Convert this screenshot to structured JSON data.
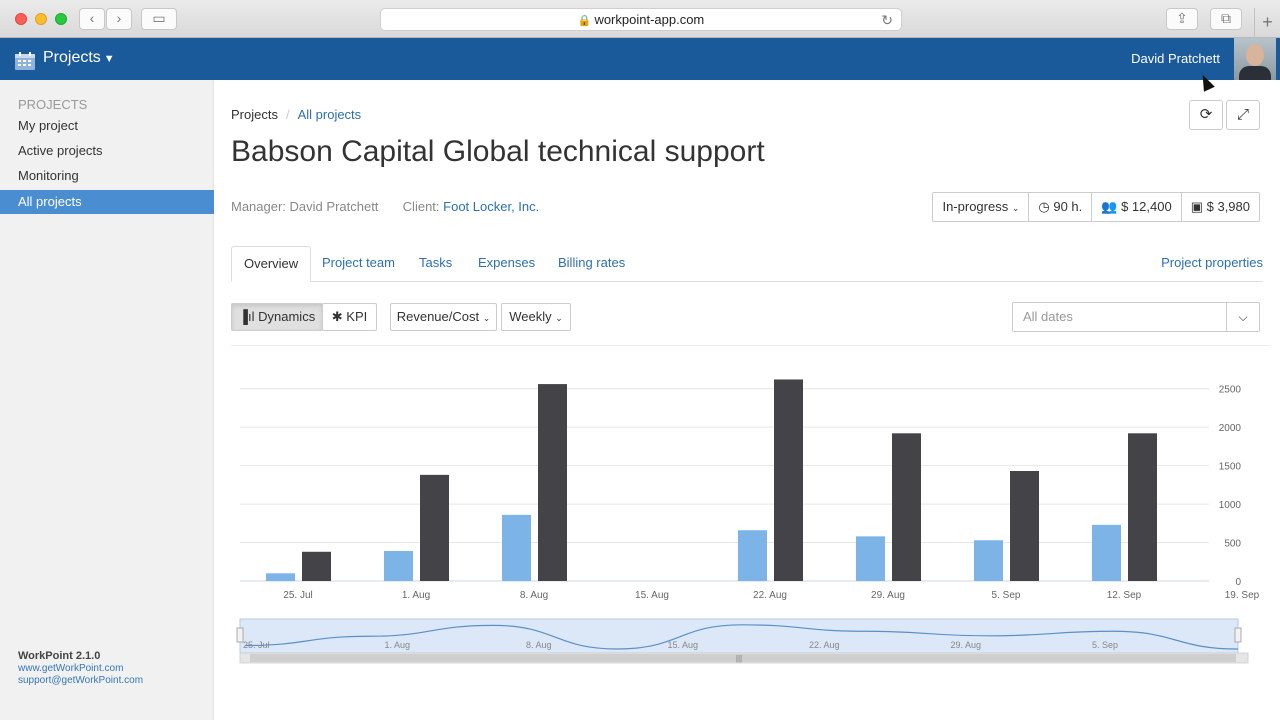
{
  "browser": {
    "url": "workpoint-app.com"
  },
  "header": {
    "app_menu": "Projects",
    "user_name": "David Pratchett"
  },
  "sidebar": {
    "section": "PROJECTS",
    "items": [
      {
        "label": "My project",
        "active": false
      },
      {
        "label": "Active projects",
        "active": false
      },
      {
        "label": "Monitoring",
        "active": false
      },
      {
        "label": "All projects",
        "active": true
      }
    ],
    "version": "WorkPoint 2.1.0",
    "website": "www.getWorkPoint.com",
    "email": "support@getWorkPoint.com"
  },
  "breadcrumb": {
    "root": "Projects",
    "current": "All projects"
  },
  "project": {
    "title": "Babson Capital Global technical support",
    "manager_label": "Manager:",
    "manager": "David Pratchett",
    "client_label": "Client:",
    "client": "Foot Locker, Inc."
  },
  "stats": {
    "status": "In-progress",
    "hours": "90 h.",
    "team_cost": "$ 12,400",
    "expenses": "$ 3,980"
  },
  "tabs": [
    "Overview",
    "Project team",
    "Tasks",
    "Expenses",
    "Billing rates"
  ],
  "tabs_active": "Overview",
  "properties_link": "Project properties",
  "toolbar": {
    "dynamics": "Dynamics",
    "kpi": "KPI",
    "metric": "Revenue/Cost",
    "period": "Weekly",
    "dates_placeholder": "All dates"
  },
  "colors": {
    "header": "#1a5a9b",
    "sidebar_active": "#4a8ed1",
    "light_bar": "#7cb4e8",
    "dark_bar": "#434348"
  },
  "chart_data": {
    "type": "bar",
    "categories": [
      "25. Jul",
      "1. Aug",
      "8. Aug",
      "15. Aug",
      "22. Aug",
      "29. Aug",
      "5. Sep",
      "12. Sep",
      "19. Sep"
    ],
    "series": [
      {
        "values": [
          100,
          390,
          860,
          0,
          660,
          580,
          530,
          730,
          null
        ],
        "color": "#7cb4e8"
      },
      {
        "values": [
          380,
          1380,
          2560,
          0,
          2620,
          1920,
          1430,
          1920,
          null
        ],
        "color": "#434348"
      }
    ],
    "ylim": [
      0,
      2600
    ],
    "yticks": [
      0,
      500,
      1000,
      1500,
      2000,
      2500
    ],
    "navigator_labels": [
      "25. Jul",
      "1. Aug",
      "8. Aug",
      "15. Aug",
      "22. Aug",
      "29. Aug",
      "5. Sep"
    ],
    "grid": true,
    "legend": false
  }
}
